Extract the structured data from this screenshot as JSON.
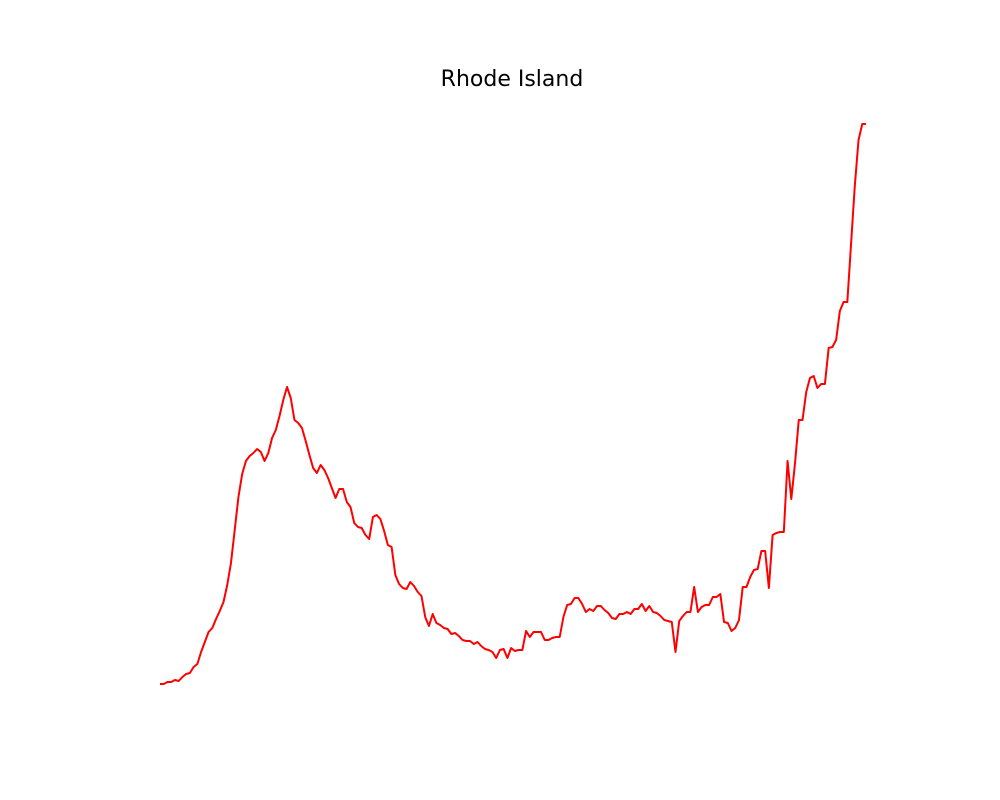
{
  "chart_data": {
    "type": "line",
    "title": "Rhode Island",
    "color": "#ff0000",
    "values": [
      0,
      0,
      2,
      2,
      4,
      3,
      7,
      10,
      11,
      17,
      20,
      32,
      42,
      52,
      56,
      65,
      73,
      82,
      99,
      121,
      154,
      187,
      210,
      223,
      228,
      231,
      235,
      232,
      223,
      231,
      246,
      254,
      268,
      284,
      297,
      286,
      264,
      261,
      256,
      243,
      229,
      216,
      211,
      219,
      214,
      206,
      196,
      186,
      195,
      195,
      182,
      177,
      161,
      157,
      156,
      149,
      145,
      167,
      169,
      165,
      153,
      139,
      137,
      109,
      100,
      96,
      95,
      102,
      98,
      92,
      88,
      67,
      58,
      70,
      61,
      59,
      56,
      55,
      50,
      51,
      48,
      44,
      43,
      43,
      40,
      42,
      38,
      35,
      34,
      32,
      26,
      34,
      35,
      26,
      36,
      33,
      34,
      34,
      53,
      47,
      52,
      52,
      52,
      44,
      44,
      46,
      47,
      47,
      67,
      79,
      80,
      86,
      86,
      80,
      72,
      75,
      73,
      78,
      78,
      74,
      71,
      66,
      65,
      70,
      70,
      72,
      70,
      75,
      75,
      80,
      73,
      78,
      72,
      71,
      68,
      64,
      63,
      62,
      32,
      63,
      68,
      72,
      72,
      97,
      72,
      77,
      79,
      79,
      87,
      87,
      90,
      62,
      61,
      53,
      56,
      64,
      97,
      97,
      107,
      114,
      115,
      133,
      133,
      96,
      149,
      151,
      152,
      152,
      223,
      185,
      221,
      264,
      264,
      292,
      306,
      308,
      296,
      300,
      300,
      336,
      337,
      344,
      373,
      382,
      382,
      440,
      498,
      544,
      560,
      560
    ],
    "ylim": [
      0,
      560
    ]
  }
}
